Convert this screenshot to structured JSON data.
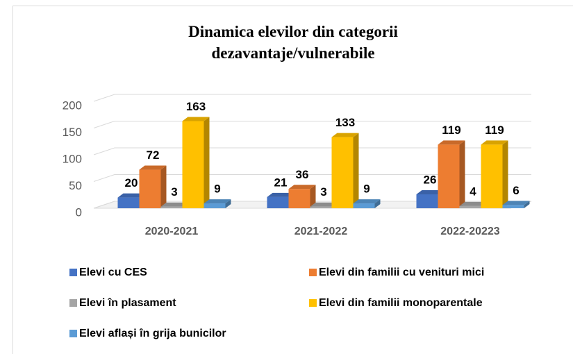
{
  "chart_data": {
    "type": "bar3d",
    "title": "Dinamica elevilor din categorii dezavantaje/vulnerabile",
    "categories": [
      "2020-2021",
      "2021-2022",
      "2022-20223"
    ],
    "series": [
      {
        "name": "Elevi cu CES",
        "color": "#4472c4",
        "values": [
          20,
          21,
          26
        ]
      },
      {
        "name": "Elevi din familii cu venituri mici",
        "color": "#ed7d31",
        "values": [
          72,
          36,
          119
        ]
      },
      {
        "name": "Elevi în plasament",
        "color": "#a5a5a5",
        "values": [
          3,
          3,
          4
        ]
      },
      {
        "name": "Elevi din familii monoparentale",
        "color": "#ffc000",
        "values": [
          163,
          133,
          119
        ]
      },
      {
        "name": "Elevi aflași în grija bunicilor",
        "color": "#5b9bd5",
        "values": [
          9,
          9,
          6
        ]
      }
    ],
    "ylim": [
      0,
      200
    ],
    "yticks": [
      0,
      50,
      100,
      150,
      200
    ],
    "grid": true,
    "legend": "bottom"
  }
}
